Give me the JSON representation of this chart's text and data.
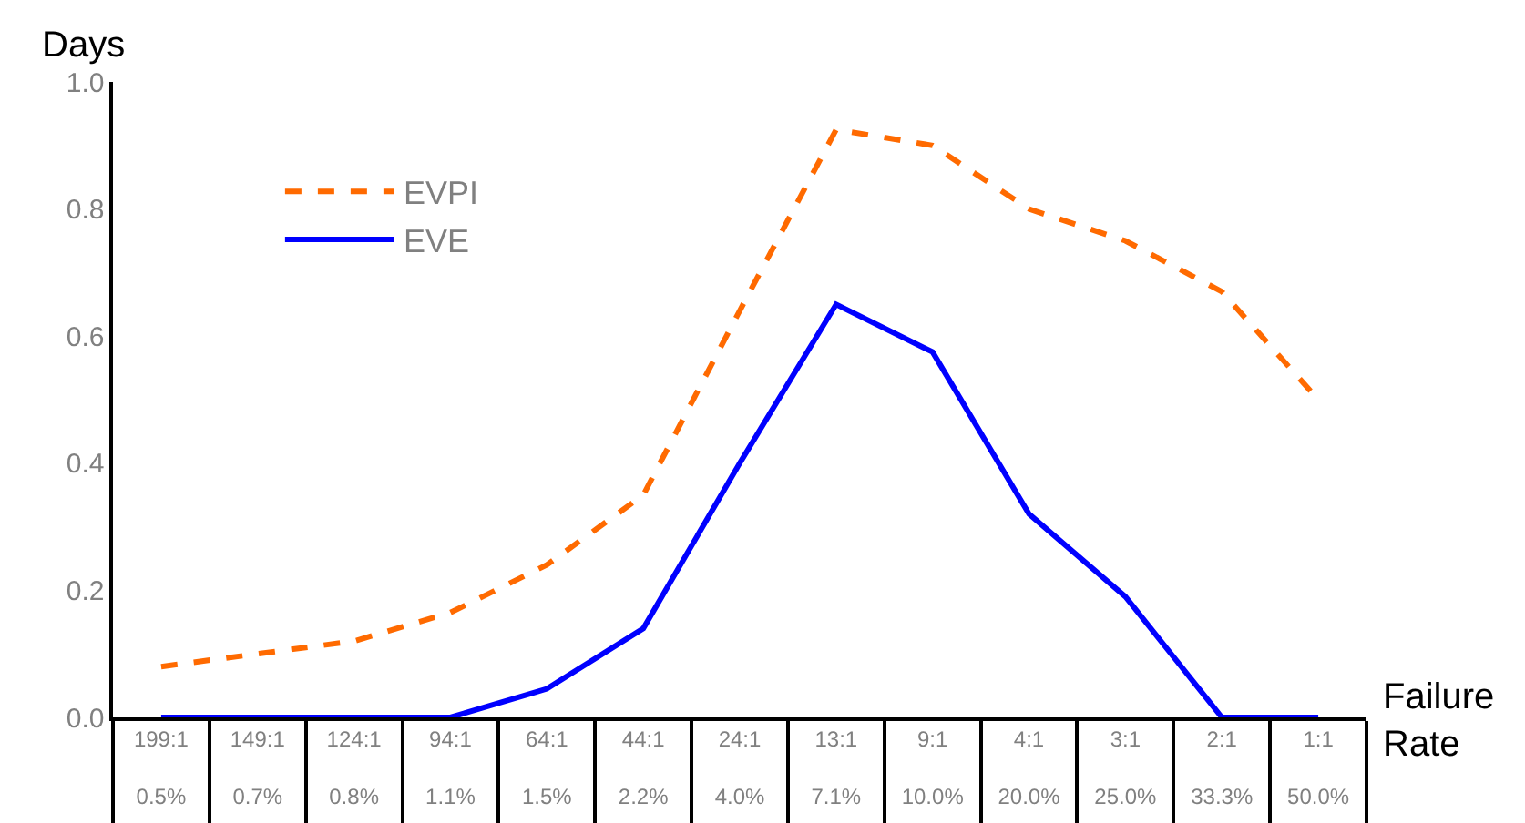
{
  "chart_data": {
    "type": "line",
    "xlabel": "Failure Rate",
    "ylabel": "Days",
    "categories": [
      "199:1\n0.5%",
      "149:1\n0.7%",
      "124:1\n0.8%",
      "94:1\n1.1%",
      "64:1\n1.5%",
      "44:1\n2.2%",
      "24:1\n4.0%",
      "13:1\n7.1%",
      "9:1\n10.0%",
      "4:1\n20.0%",
      "3:1\n25.0%",
      "2:1\n33.3%",
      "1:1\n50.0%"
    ],
    "series": [
      {
        "name": "EVPI",
        "color": "#ff6a00",
        "line_style": "dashed",
        "values": [
          0.08,
          0.1,
          0.12,
          0.165,
          0.24,
          0.35,
          0.64,
          0.925,
          0.9,
          0.8,
          0.75,
          0.67,
          0.5
        ]
      },
      {
        "name": "EVE",
        "color": "#0000ff",
        "line_style": "solid",
        "values": [
          0,
          0,
          0,
          0,
          0.045,
          0.14,
          0.4,
          0.65,
          0.575,
          0.32,
          0.19,
          0,
          0
        ]
      }
    ],
    "ylim": [
      0,
      1
    ],
    "yticks": [
      {
        "value": 0,
        "label": "0.0"
      },
      {
        "value": 0.2,
        "label": "0.2"
      },
      {
        "value": 0.4,
        "label": "0.4"
      },
      {
        "value": 0.6,
        "label": "0.6"
      },
      {
        "value": 0.8,
        "label": "0.8"
      },
      {
        "value": 1,
        "label": "1.0"
      }
    ],
    "grid": false,
    "legend": "top left",
    "marker": "none"
  }
}
